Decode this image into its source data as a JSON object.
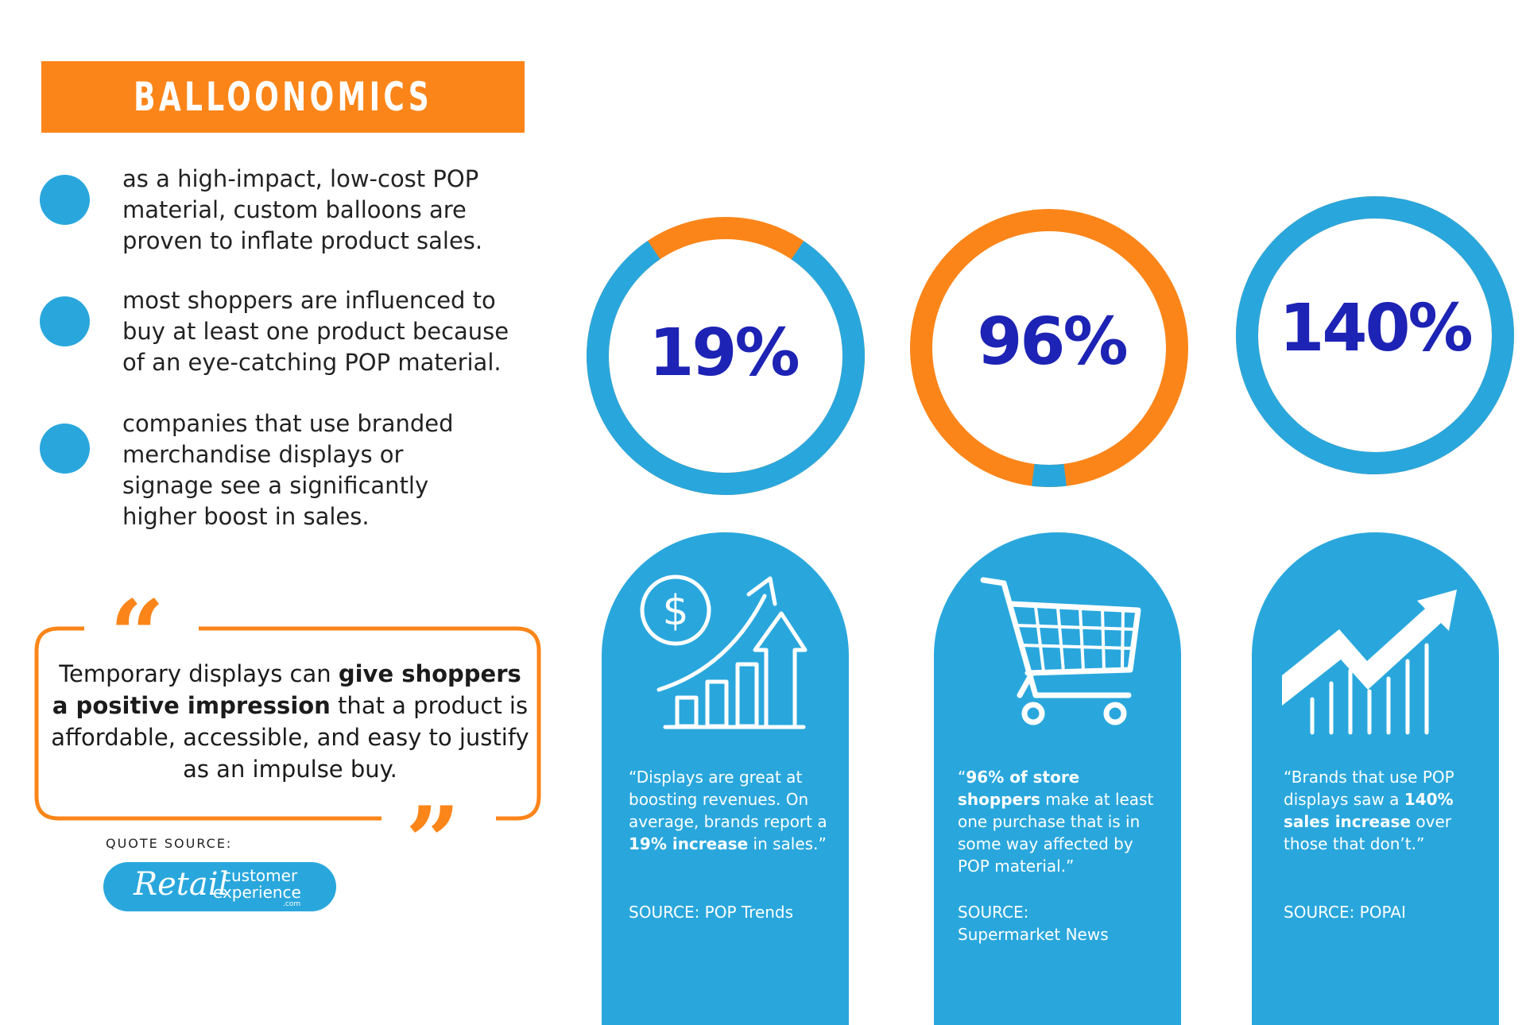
{
  "title": "BALLOONOMICS",
  "bullets": [
    "as a high-impact, low-cost POP material, custom balloons are proven to inflate product sales.",
    "most shoppers are influenced to buy at least one product because of an eye-catching POP material.",
    "companies that use branded merchandise displays or signage see a significantly higher boost in sales."
  ],
  "stats": [
    {
      "value": "19%",
      "fraction": 0.19
    },
    {
      "value": "96%",
      "fraction": 0.96
    },
    {
      "value": "140%",
      "fraction": 1.0
    }
  ],
  "quote": {
    "part1": "Temporary displays can ",
    "bold": "give shoppers a positive impression",
    "part2": " that a product is affordable, accessible, and easy to justify as an impulse buy.",
    "source_label": "QUOTE SOURCE:",
    "logo": {
      "retail": "Retail",
      "customer": "customer",
      "experience": "experience",
      "com": ".com"
    }
  },
  "cards": [
    {
      "icon": "money-growth-chart-icon",
      "pre": "“Displays are great at boosting revenues. On average, brands report a ",
      "bold": "19% increase",
      "post": " in sales.”",
      "source_line1": "SOURCE: POP Trends",
      "source_line2": ""
    },
    {
      "icon": "shopping-cart-icon",
      "pre": "“",
      "bold": "96% of store shoppers",
      "post": " make at least one purchase that is in some way affected by POP material.”",
      "source_line1": "SOURCE:",
      "source_line2": "Supermarket News"
    },
    {
      "icon": "trend-arrow-icon",
      "pre": "“Brands that use POP displays saw a ",
      "bold": "140% sales increase",
      "post": " over those that don’t.”",
      "source_line1": "SOURCE: POPAI",
      "source_line2": ""
    }
  ],
  "colors": {
    "orange": "#fb8519",
    "blue": "#29a7dd",
    "navy": "#1d23b4"
  }
}
